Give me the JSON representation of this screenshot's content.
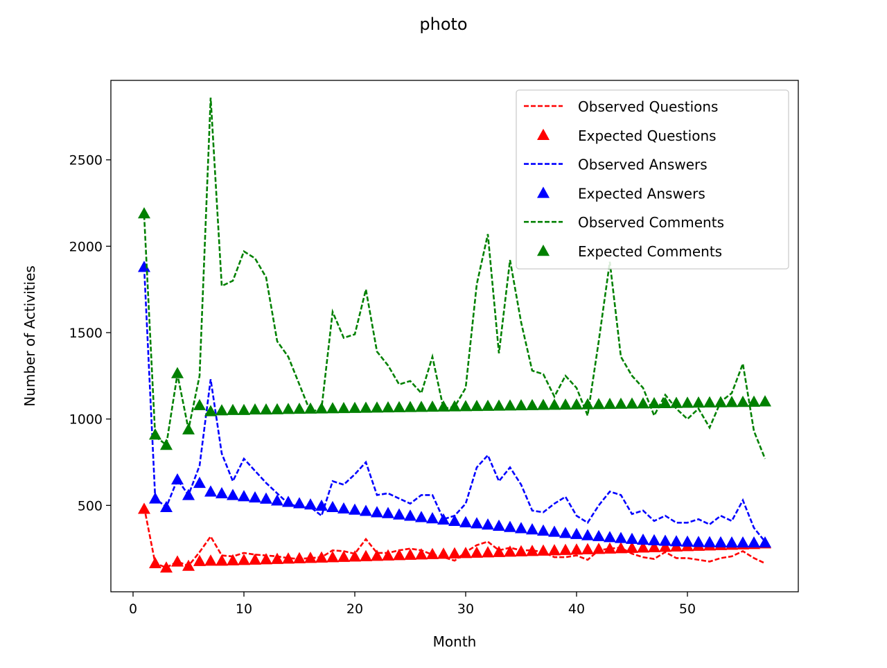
{
  "chart_data": {
    "type": "line",
    "title": "photo",
    "xlabel": "Month",
    "ylabel": "Number of Activities",
    "xlim": [
      -2,
      60
    ],
    "ylim": [
      0,
      2960
    ],
    "x_ticks": [
      0,
      10,
      20,
      30,
      40,
      50
    ],
    "y_ticks": [
      500,
      1000,
      1500,
      2000,
      2500
    ],
    "grid": false,
    "legend_position": "top-right",
    "x": [
      1,
      2,
      3,
      4,
      5,
      6,
      7,
      8,
      9,
      10,
      11,
      12,
      13,
      14,
      15,
      16,
      17,
      18,
      19,
      20,
      21,
      22,
      23,
      24,
      25,
      26,
      27,
      28,
      29,
      30,
      31,
      32,
      33,
      34,
      35,
      36,
      37,
      38,
      39,
      40,
      41,
      42,
      43,
      44,
      45,
      46,
      47,
      48,
      49,
      50,
      51,
      52,
      53,
      54,
      55,
      56,
      57
    ],
    "series": [
      {
        "name": "Observed Questions",
        "style": "dashed",
        "color": "#ff0000",
        "values": [
          490,
          165,
          140,
          175,
          150,
          230,
          320,
          210,
          205,
          225,
          215,
          210,
          205,
          195,
          190,
          195,
          200,
          240,
          235,
          220,
          305,
          225,
          225,
          240,
          250,
          240,
          215,
          200,
          180,
          230,
          270,
          290,
          240,
          255,
          240,
          240,
          230,
          200,
          200,
          210,
          185,
          240,
          250,
          255,
          220,
          200,
          190,
          230,
          195,
          195,
          185,
          175,
          195,
          205,
          235,
          195,
          165
        ]
      },
      {
        "name": "Expected Questions",
        "style": "triangle",
        "color": "#ff0000",
        "values": [
          480,
          165,
          140,
          175,
          150,
          178,
          180,
          180,
          182,
          184,
          186,
          188,
          190,
          192,
          194,
          196,
          198,
          200,
          202,
          204,
          206,
          208,
          210,
          212,
          214,
          216,
          218,
          220,
          222,
          224,
          226,
          228,
          230,
          232,
          234,
          236,
          238,
          240,
          242,
          244,
          246,
          248,
          250,
          252,
          254,
          256,
          258,
          260,
          262,
          264,
          266,
          268,
          270,
          272,
          274,
          276,
          280
        ]
      },
      {
        "name": "Observed Answers",
        "style": "dashed",
        "color": "#0000ff",
        "values": [
          1880,
          540,
          490,
          650,
          560,
          730,
          1230,
          800,
          640,
          770,
          700,
          630,
          570,
          510,
          490,
          490,
          440,
          640,
          620,
          680,
          750,
          560,
          570,
          540,
          510,
          560,
          560,
          420,
          440,
          510,
          720,
          790,
          640,
          720,
          620,
          470,
          460,
          510,
          550,
          440,
          400,
          500,
          580,
          560,
          450,
          470,
          410,
          440,
          400,
          400,
          420,
          390,
          440,
          410,
          530,
          370,
          290
        ]
      },
      {
        "name": "Expected Answers",
        "style": "triangle",
        "color": "#0000ff",
        "values": [
          1880,
          540,
          490,
          650,
          560,
          630,
          580,
          570,
          560,
          553,
          546,
          539,
          528,
          520,
          512,
          505,
          498,
          490,
          482,
          475,
          468,
          460,
          455,
          447,
          440,
          432,
          425,
          418,
          410,
          402,
          396,
          389,
          382,
          375,
          368,
          361,
          354,
          347,
          340,
          334,
          327,
          322,
          316,
          311,
          306,
          301,
          298,
          295,
          292,
          290,
          288,
          287,
          286,
          285,
          285,
          285,
          285
        ]
      },
      {
        "name": "Observed Comments",
        "style": "dashed",
        "color": "#008000",
        "values": [
          2180,
          900,
          850,
          1260,
          940,
          1250,
          2860,
          1770,
          1800,
          1970,
          1930,
          1820,
          1450,
          1360,
          1200,
          1040,
          1060,
          1620,
          1470,
          1490,
          1750,
          1390,
          1310,
          1200,
          1220,
          1150,
          1360,
          1060,
          1070,
          1180,
          1780,
          2070,
          1380,
          1920,
          1560,
          1280,
          1260,
          1130,
          1250,
          1180,
          1020,
          1450,
          1910,
          1360,
          1250,
          1180,
          1020,
          1140,
          1060,
          1000,
          1060,
          950,
          1100,
          1150,
          1320,
          930,
          770
        ]
      },
      {
        "name": "Expected Comments",
        "style": "triangle",
        "color": "#008000",
        "values": [
          2190,
          910,
          850,
          1265,
          940,
          1080,
          1045,
          1050,
          1052,
          1052,
          1055,
          1055,
          1056,
          1058,
          1059,
          1060,
          1061,
          1062,
          1063,
          1064,
          1065,
          1066,
          1067,
          1068,
          1069,
          1070,
          1071,
          1072,
          1073,
          1074,
          1075,
          1076,
          1077,
          1078,
          1079,
          1080,
          1081,
          1082,
          1083,
          1084,
          1085,
          1086,
          1087,
          1088,
          1089,
          1090,
          1091,
          1092,
          1093,
          1094,
          1095,
          1096,
          1097,
          1098,
          1099,
          1100,
          1102
        ]
      }
    ]
  }
}
